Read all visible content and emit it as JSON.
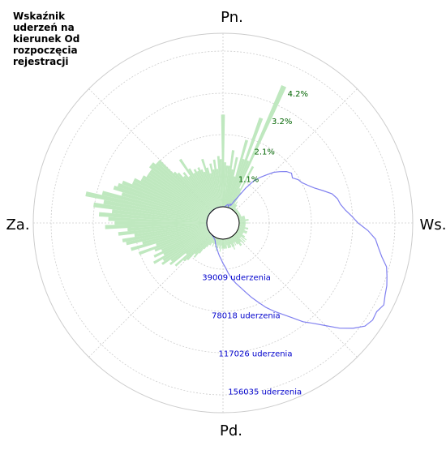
{
  "chart_data": {
    "type": "polar-bar-with-line",
    "title_lines": [
      "Wskaźnik",
      "uderzeń na",
      "kierunek Od",
      "rozpoczęcia",
      "rejestracji"
    ],
    "directions": {
      "n": "Pn.",
      "e": "Ws.",
      "s": "Pd.",
      "w": "Za."
    },
    "percent_ticks": [
      {
        "value": 1.1,
        "label": "1.1%"
      },
      {
        "value": 2.1,
        "label": "2.1%"
      },
      {
        "value": 3.2,
        "label": "3.2%"
      },
      {
        "value": 4.2,
        "label": "4.2%"
      }
    ],
    "count_ticks": [
      {
        "value": 39009,
        "label": "39009 uderzenia"
      },
      {
        "value": 78018,
        "label": "78018 uderzenia"
      },
      {
        "value": 117026,
        "label": "117026 uderzenia"
      },
      {
        "value": 156035,
        "label": "156035 uderzenia"
      }
    ],
    "grid": true,
    "bar_color": "#bfe8bf",
    "line_color": "#8080f0",
    "percent_label_color": "#006400",
    "count_label_color": "#0000cc",
    "bar_series": {
      "name": "",
      "angle_step_deg": 2,
      "values": [
        2.9,
        0.5,
        0.4,
        0.5,
        1.8,
        1.2,
        1.6,
        0.5,
        2.2,
        0.9,
        0.3,
        0.8,
        0.6,
        0.7,
        1.5,
        0.6,
        0.2,
        0.3,
        0.2,
        0.2,
        0.1,
        0.1,
        0.1,
        0.1,
        0.1,
        0.1,
        0.1,
        0.1,
        0.1,
        0.1,
        0.1,
        0.1,
        0.1,
        0.1,
        0.1,
        0.1,
        0.2,
        0.2,
        0.2,
        0.2,
        0.2,
        0.3,
        0.3,
        0.2,
        0.2,
        0.3,
        0.2,
        0.2,
        0.2,
        0.2,
        0.2,
        0.3,
        0.3,
        0.2,
        0.2,
        0.3,
        0.3,
        0.3,
        0.2,
        0.2,
        0.2,
        0.3,
        0.3,
        0.4,
        0.2,
        0.4,
        0.2,
        0.4,
        0.3,
        0.3,
        0.4,
        0.4,
        0.3,
        0.3,
        0.2,
        0.3,
        0.2,
        0.3,
        0.4,
        0.3,
        0.2,
        0.3,
        0.3,
        0.3,
        0.3,
        0.2,
        0.3,
        0.3,
        0.3,
        0.3,
        0.3,
        0.3,
        0.2,
        0.4,
        0.3,
        0.2,
        0.3,
        0.4,
        0.2,
        0.3,
        0.2,
        0.2,
        0.3,
        0.2,
        0.2,
        0.3,
        0.3,
        0.4,
        0.5,
        0.7,
        0.9,
        0.8,
        1.1,
        1.2,
        1.5,
        1.0,
        1.6,
        1.5,
        1.8,
        1.7,
        2.0,
        1.6,
        1.9,
        1.6,
        1.8,
        2.3,
        1.7,
        2.5,
        2.1,
        2.6,
        2.7,
        2.3,
        2.8,
        2.5,
        3.2,
        2.9,
        3.1,
        3.4,
        3.0,
        3.6,
        3.3,
        3.9,
        3.4,
        2.8,
        3.1,
        3.0,
        2.9,
        2.6,
        2.6,
        2.4,
        2.4,
        2.3,
        2.3,
        2.3,
        2.4,
        2.4,
        2.3,
        2.3,
        1.7,
        1.6,
        1.4,
        1.5,
        1.3,
        1.9,
        1.5,
        1.3,
        1.4,
        1.3,
        1.4,
        1.3,
        1.2,
        1.6,
        1.3,
        1.1,
        1.4,
        1.2,
        1.5,
        1.2,
        1.6,
        1.5,
        1.3,
        1.4,
        1.3,
        1.3,
        1.2,
        1.1,
        1.2,
        1.0,
        1.4,
        1.6,
        3.0,
        1.6,
        4.2
      ]
    },
    "line_series": {
      "name": "",
      "angle_step_deg": 3,
      "values": [
        0,
        0,
        100,
        1000,
        2000,
        3000,
        1000,
        4000,
        3000,
        8000,
        14000,
        25000,
        35000,
        42000,
        48000,
        55000,
        60000,
        65000,
        68000,
        66000,
        70000,
        72000,
        76000,
        81000,
        88000,
        96000,
        100000,
        102000,
        106000,
        112000,
        118000,
        128000,
        136000,
        140000,
        145000,
        152000,
        155000,
        158000,
        160000,
        163000,
        160000,
        161000,
        158000,
        150000,
        140000,
        128000,
        118000,
        110000,
        100000,
        92000,
        85000,
        78000,
        70000,
        63000,
        56000,
        50000,
        45000,
        40000,
        34000,
        28000,
        24000,
        20000,
        17000,
        14000,
        11000,
        9000,
        7000,
        5000,
        3000,
        2000,
        1500,
        1000,
        600,
        300,
        100,
        0,
        0,
        0,
        0,
        0,
        0,
        0,
        0,
        0,
        0,
        0,
        0,
        0,
        0,
        0,
        0,
        0,
        0,
        0,
        0,
        0,
        0,
        0,
        0,
        0,
        0,
        0,
        0,
        0,
        0,
        0,
        0,
        0,
        0,
        0,
        0,
        0,
        0,
        0,
        0,
        0,
        0,
        0,
        0,
        0
      ]
    }
  }
}
